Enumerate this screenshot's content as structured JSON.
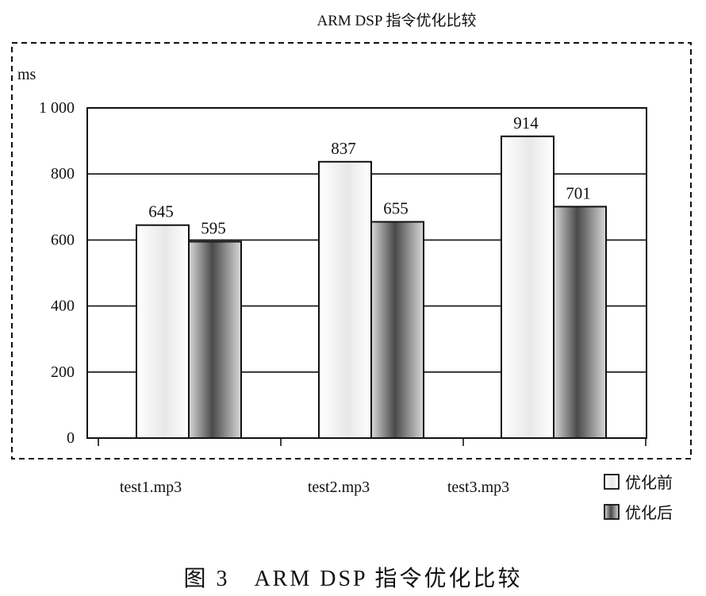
{
  "chart_data": {
    "type": "bar",
    "title": "ARM DSP 指令优化比较",
    "ylabel": "ms",
    "xlabel": "",
    "categories": [
      "test1.mp3",
      "test2.mp3",
      "test3.mp3"
    ],
    "series": [
      {
        "name": "优化前",
        "values": [
          645,
          837,
          914
        ],
        "style": "light"
      },
      {
        "name": "优化后",
        "values": [
          595,
          655,
          701
        ],
        "style": "dark"
      }
    ],
    "ylim": [
      0,
      1000
    ],
    "yticks": [
      0,
      200,
      400,
      600,
      800,
      1000
    ],
    "ytick_labels": [
      "0",
      "200",
      "400",
      "600",
      "800",
      "1 000"
    ],
    "data_labels": [
      [
        "645",
        "837",
        "914"
      ],
      [
        "595",
        "655",
        "701"
      ]
    ],
    "grid": true,
    "legend_position": "bottom-right"
  },
  "caption": "图 3　ARM DSP 指令优化比较",
  "colors": {
    "axis": "#111111",
    "light_fill_edge": "#ffffff",
    "light_fill_mid": "#e8e8e8",
    "dark_fill_edge": "#d8d8d8",
    "dark_fill_mid": "#4a4a4a"
  }
}
